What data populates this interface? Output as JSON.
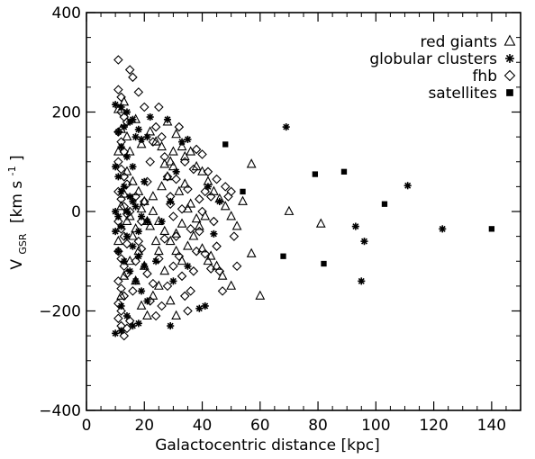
{
  "chart_data": {
    "type": "scatter",
    "xlabel": "Galactocentric distance [kpc]",
    "ylabel_main": "V",
    "ylabel_sub": "GSR",
    "ylabel_unit": "[km s",
    "ylabel_exp": "-1",
    "ylabel_close": "]",
    "xlim": [
      0,
      150
    ],
    "ylim": [
      -400,
      400
    ],
    "x_ticks": [
      0,
      20,
      40,
      60,
      80,
      100,
      120,
      140
    ],
    "y_ticks": [
      400,
      200,
      0,
      -200,
      -400
    ],
    "x_tick_labels": [
      "0",
      "20",
      "40",
      "60",
      "80",
      "100",
      "120",
      "140"
    ],
    "y_tick_labels": [
      "400",
      "200",
      "0",
      "−200",
      "−400"
    ],
    "legend": [
      {
        "name": "red giants",
        "marker": "triangle"
      },
      {
        "name": "globular clusters",
        "marker": "asterisk"
      },
      {
        "name": "fhb",
        "marker": "diamond"
      },
      {
        "name": "satellites",
        "marker": "square"
      }
    ],
    "series": [
      {
        "name": "red giants",
        "marker": "triangle",
        "points": [
          [
            11,
            205
          ],
          [
            12,
            165
          ],
          [
            13,
            220
          ],
          [
            14,
            150
          ],
          [
            15,
            120
          ],
          [
            17,
            185
          ],
          [
            19,
            135
          ],
          [
            22,
            160
          ],
          [
            24,
            140
          ],
          [
            26,
            130
          ],
          [
            28,
            180
          ],
          [
            30,
            120
          ],
          [
            31,
            155
          ],
          [
            33,
            130
          ],
          [
            34,
            110
          ],
          [
            36,
            120
          ],
          [
            38,
            90
          ],
          [
            40,
            80
          ],
          [
            42,
            60
          ],
          [
            44,
            40
          ],
          [
            46,
            25
          ],
          [
            48,
            10
          ],
          [
            50,
            -10
          ],
          [
            52,
            -30
          ],
          [
            54,
            20
          ],
          [
            57,
            95
          ],
          [
            70,
            0
          ],
          [
            81,
            -25
          ],
          [
            14,
            80
          ],
          [
            16,
            60
          ],
          [
            18,
            40
          ],
          [
            20,
            20
          ],
          [
            23,
            0
          ],
          [
            25,
            -20
          ],
          [
            27,
            -40
          ],
          [
            29,
            -60
          ],
          [
            31,
            -80
          ],
          [
            33,
            -100
          ],
          [
            35,
            -70
          ],
          [
            37,
            -50
          ],
          [
            39,
            -30
          ],
          [
            41,
            -10
          ],
          [
            43,
            -90
          ],
          [
            45,
            -110
          ],
          [
            47,
            -130
          ],
          [
            57,
            -85
          ],
          [
            60,
            -170
          ],
          [
            50,
            -150
          ],
          [
            12,
            -170
          ],
          [
            13,
            -130
          ],
          [
            15,
            -100
          ],
          [
            17,
            -140
          ],
          [
            19,
            -190
          ],
          [
            21,
            -210
          ],
          [
            23,
            -170
          ],
          [
            25,
            -150
          ],
          [
            27,
            -120
          ],
          [
            29,
            -180
          ],
          [
            31,
            -210
          ],
          [
            12,
            10
          ],
          [
            14,
            -20
          ],
          [
            16,
            -50
          ],
          [
            18,
            -80
          ],
          [
            20,
            -110
          ],
          [
            22,
            -30
          ],
          [
            24,
            -60
          ],
          [
            26,
            50
          ],
          [
            28,
            70
          ],
          [
            30,
            90
          ],
          [
            32,
            40
          ],
          [
            34,
            55
          ],
          [
            36,
            15
          ],
          [
            38,
            -15
          ],
          [
            40,
            -75
          ],
          [
            42,
            -100
          ],
          [
            11,
            -60
          ],
          [
            13,
            35
          ],
          [
            15,
            -10
          ],
          [
            17,
            -35
          ],
          [
            19,
            5
          ],
          [
            21,
            -20
          ],
          [
            23,
            30
          ],
          [
            25,
            -80
          ],
          [
            27,
            95
          ],
          [
            29,
            100
          ],
          [
            31,
            -45
          ],
          [
            33,
            -25
          ],
          [
            35,
            5
          ],
          [
            11,
            120
          ]
        ]
      },
      {
        "name": "globular clusters",
        "marker": "asterisk",
        "points": [
          [
            10,
            215
          ],
          [
            12,
            210
          ],
          [
            14,
            200
          ],
          [
            16,
            185
          ],
          [
            18,
            165
          ],
          [
            17,
            150
          ],
          [
            19,
            145
          ],
          [
            21,
            150
          ],
          [
            11,
            160
          ],
          [
            13,
            170
          ],
          [
            15,
            180
          ],
          [
            12,
            130
          ],
          [
            14,
            110
          ],
          [
            16,
            90
          ],
          [
            10,
            90
          ],
          [
            11,
            70
          ],
          [
            13,
            50
          ],
          [
            15,
            30
          ],
          [
            17,
            10
          ],
          [
            19,
            -10
          ],
          [
            21,
            -20
          ],
          [
            12,
            -30
          ],
          [
            14,
            -50
          ],
          [
            16,
            -70
          ],
          [
            18,
            -90
          ],
          [
            20,
            -110
          ],
          [
            10,
            -40
          ],
          [
            11,
            -80
          ],
          [
            13,
            -100
          ],
          [
            15,
            -120
          ],
          [
            17,
            -140
          ],
          [
            19,
            -160
          ],
          [
            21,
            -180
          ],
          [
            12,
            -190
          ],
          [
            14,
            -210
          ],
          [
            16,
            -230
          ],
          [
            10,
            -245
          ],
          [
            12,
            -240
          ],
          [
            18,
            -225
          ],
          [
            29,
            -230
          ],
          [
            28,
            185
          ],
          [
            31,
            80
          ],
          [
            33,
            140
          ],
          [
            35,
            145
          ],
          [
            29,
            20
          ],
          [
            26,
            -20
          ],
          [
            24,
            -100
          ],
          [
            30,
            -140
          ],
          [
            35,
            -110
          ],
          [
            39,
            -195
          ],
          [
            41,
            -190
          ],
          [
            42,
            50
          ],
          [
            44,
            -45
          ],
          [
            46,
            20
          ],
          [
            69,
            170
          ],
          [
            93,
            -30
          ],
          [
            96,
            -60
          ],
          [
            95,
            -140
          ],
          [
            111,
            52
          ],
          [
            123,
            -35
          ],
          [
            22,
            190
          ],
          [
            20,
            60
          ],
          [
            18,
            -40
          ],
          [
            16,
            20
          ],
          [
            14,
            0
          ],
          [
            12,
            40
          ],
          [
            10,
            0
          ],
          [
            11,
            -10
          ]
        ]
      },
      {
        "name": "fhb",
        "marker": "diamond",
        "points": [
          [
            11,
            305
          ],
          [
            15,
            285
          ],
          [
            11,
            245
          ],
          [
            12,
            230
          ],
          [
            12,
            200
          ],
          [
            13,
            190
          ],
          [
            14,
            180
          ],
          [
            11,
            160
          ],
          [
            12,
            140
          ],
          [
            13,
            120
          ],
          [
            11,
            100
          ],
          [
            12,
            85
          ],
          [
            13,
            70
          ],
          [
            14,
            55
          ],
          [
            11,
            40
          ],
          [
            12,
            25
          ],
          [
            13,
            10
          ],
          [
            14,
            -5
          ],
          [
            11,
            -20
          ],
          [
            12,
            -35
          ],
          [
            13,
            -50
          ],
          [
            14,
            -65
          ],
          [
            11,
            -80
          ],
          [
            12,
            -95
          ],
          [
            13,
            -110
          ],
          [
            14,
            -125
          ],
          [
            11,
            -140
          ],
          [
            12,
            -155
          ],
          [
            13,
            -170
          ],
          [
            11,
            -185
          ],
          [
            12,
            -200
          ],
          [
            11,
            -215
          ],
          [
            12,
            -230
          ],
          [
            13,
            -250
          ],
          [
            14,
            -235
          ],
          [
            15,
            -220
          ],
          [
            16,
            -160
          ],
          [
            17,
            -100
          ],
          [
            18,
            -60
          ],
          [
            19,
            -20
          ],
          [
            20,
            20
          ],
          [
            21,
            60
          ],
          [
            22,
            100
          ],
          [
            23,
            140
          ],
          [
            24,
            170
          ],
          [
            25,
            210
          ],
          [
            26,
            150
          ],
          [
            27,
            110
          ],
          [
            28,
            70
          ],
          [
            29,
            30
          ],
          [
            30,
            -10
          ],
          [
            31,
            -50
          ],
          [
            32,
            -90
          ],
          [
            33,
            -130
          ],
          [
            34,
            -170
          ],
          [
            35,
            -200
          ],
          [
            36,
            -160
          ],
          [
            37,
            -120
          ],
          [
            38,
            -80
          ],
          [
            39,
            -40
          ],
          [
            40,
            0
          ],
          [
            41,
            40
          ],
          [
            42,
            80
          ],
          [
            43,
            30
          ],
          [
            44,
            -20
          ],
          [
            45,
            -70
          ],
          [
            46,
            -120
          ],
          [
            47,
            -160
          ],
          [
            48,
            50
          ],
          [
            50,
            40
          ],
          [
            51,
            -50
          ],
          [
            52,
            -110
          ],
          [
            32,
            170
          ],
          [
            34,
            100
          ],
          [
            16,
            270
          ],
          [
            18,
            240
          ],
          [
            20,
            210
          ],
          [
            22,
            -180
          ],
          [
            24,
            -210
          ],
          [
            26,
            -190
          ],
          [
            28,
            -150
          ],
          [
            30,
            -110
          ],
          [
            15,
            0
          ],
          [
            17,
            30
          ],
          [
            19,
            -75
          ],
          [
            21,
            -125
          ],
          [
            23,
            -145
          ],
          [
            25,
            -95
          ],
          [
            27,
            -55
          ],
          [
            29,
            15
          ],
          [
            31,
            65
          ],
          [
            33,
            5
          ],
          [
            35,
            45
          ],
          [
            37,
            85
          ],
          [
            39,
            25
          ],
          [
            41,
            -85
          ],
          [
            43,
            -115
          ],
          [
            49,
            30
          ],
          [
            45,
            65
          ],
          [
            36,
            -35
          ],
          [
            38,
            125
          ],
          [
            40,
            115
          ]
        ]
      },
      {
        "name": "satellites",
        "marker": "square",
        "points": [
          [
            48,
            135
          ],
          [
            54,
            40
          ],
          [
            68,
            -90
          ],
          [
            79,
            75
          ],
          [
            82,
            -105
          ],
          [
            89,
            80
          ],
          [
            103,
            15
          ],
          [
            140,
            -35
          ]
        ]
      }
    ]
  }
}
